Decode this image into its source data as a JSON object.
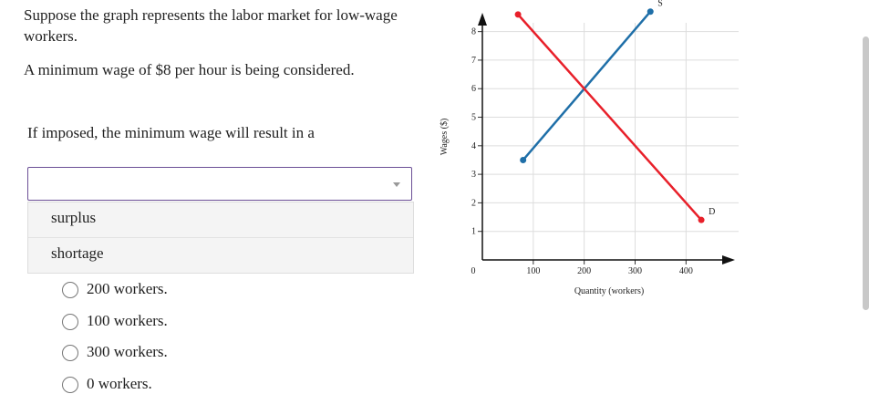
{
  "question": {
    "intro": "Suppose the graph represents the labor market for low-wage workers.",
    "proposal": "A minimum wage of $8 per hour is being considered.",
    "prompt": "If imposed, the minimum wage will result in a"
  },
  "dropdown": {
    "options": [
      "surplus",
      "shortage"
    ]
  },
  "choices": [
    "200 workers.",
    "100 workers.",
    "300 workers.",
    "0 workers."
  ],
  "chart_data": {
    "type": "line",
    "x_label": "Quantity (workers)",
    "y_label": "Wages ($)",
    "series": [
      {
        "name": "S",
        "color": "#1f6fa8",
        "x": [
          80,
          330
        ],
        "values": [
          3.5,
          8.7
        ]
      },
      {
        "name": "D",
        "color": "#e8202a",
        "x": [
          70,
          430
        ],
        "values": [
          8.6,
          1.4
        ]
      }
    ],
    "xlim": [
      0,
      480
    ],
    "ylim": [
      0,
      8.8
    ],
    "xticks": [
      100,
      200,
      300,
      400
    ],
    "yticks": [
      0,
      1,
      2,
      3,
      4,
      5,
      6,
      7,
      8
    ],
    "grid": true
  }
}
